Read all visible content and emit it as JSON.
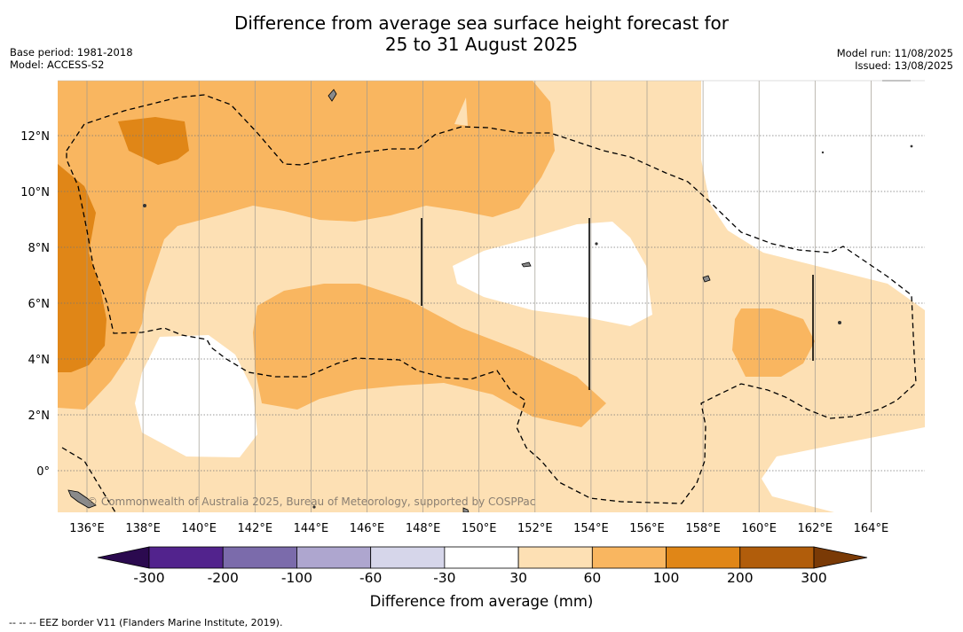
{
  "title_line1": "Difference from average sea surface height forecast for",
  "title_line2": "25 to 31 August 2025",
  "base_period": "Base period: 1981-2018",
  "model": "Model: ACCESS-S2",
  "model_run": "Model run: 11/08/2025",
  "issued": "Issued: 13/08/2025",
  "credit": "© Commonwealth of Australia 2025, Bureau of Meteorology, supported by COSPPac",
  "lon_ticks": [
    "136°E",
    "138°E",
    "140°E",
    "142°E",
    "144°E",
    "146°E",
    "148°E",
    "150°E",
    "152°E",
    "154°E",
    "156°E",
    "158°E",
    "160°E",
    "162°E",
    "164°E"
  ],
  "lat_ticks": [
    "12°N",
    "10°N",
    "8°N",
    "6°N",
    "4°N",
    "2°N",
    "0°"
  ],
  "colorbar": {
    "title": "Difference from average (mm)",
    "labels": [
      "-300",
      "-200",
      "-100",
      "-60",
      "-30",
      "30",
      "60",
      "100",
      "200",
      "300"
    ],
    "colors": [
      "#52238d",
      "#7b6bab",
      "#aea6cf",
      "#d6d6ea",
      "#ffffff",
      "#fde0b4",
      "#f9b660",
      "#e08617",
      "#b15d0b"
    ],
    "under_color": "#2b0a4f",
    "over_color": "#7a3a06"
  },
  "fill_colors": {
    "land": "#8a8a8a",
    "eez_line": "#000000"
  },
  "footnote": "-- -- -- EEZ border V11 (Flanders Marine Institute, 2019)."
}
